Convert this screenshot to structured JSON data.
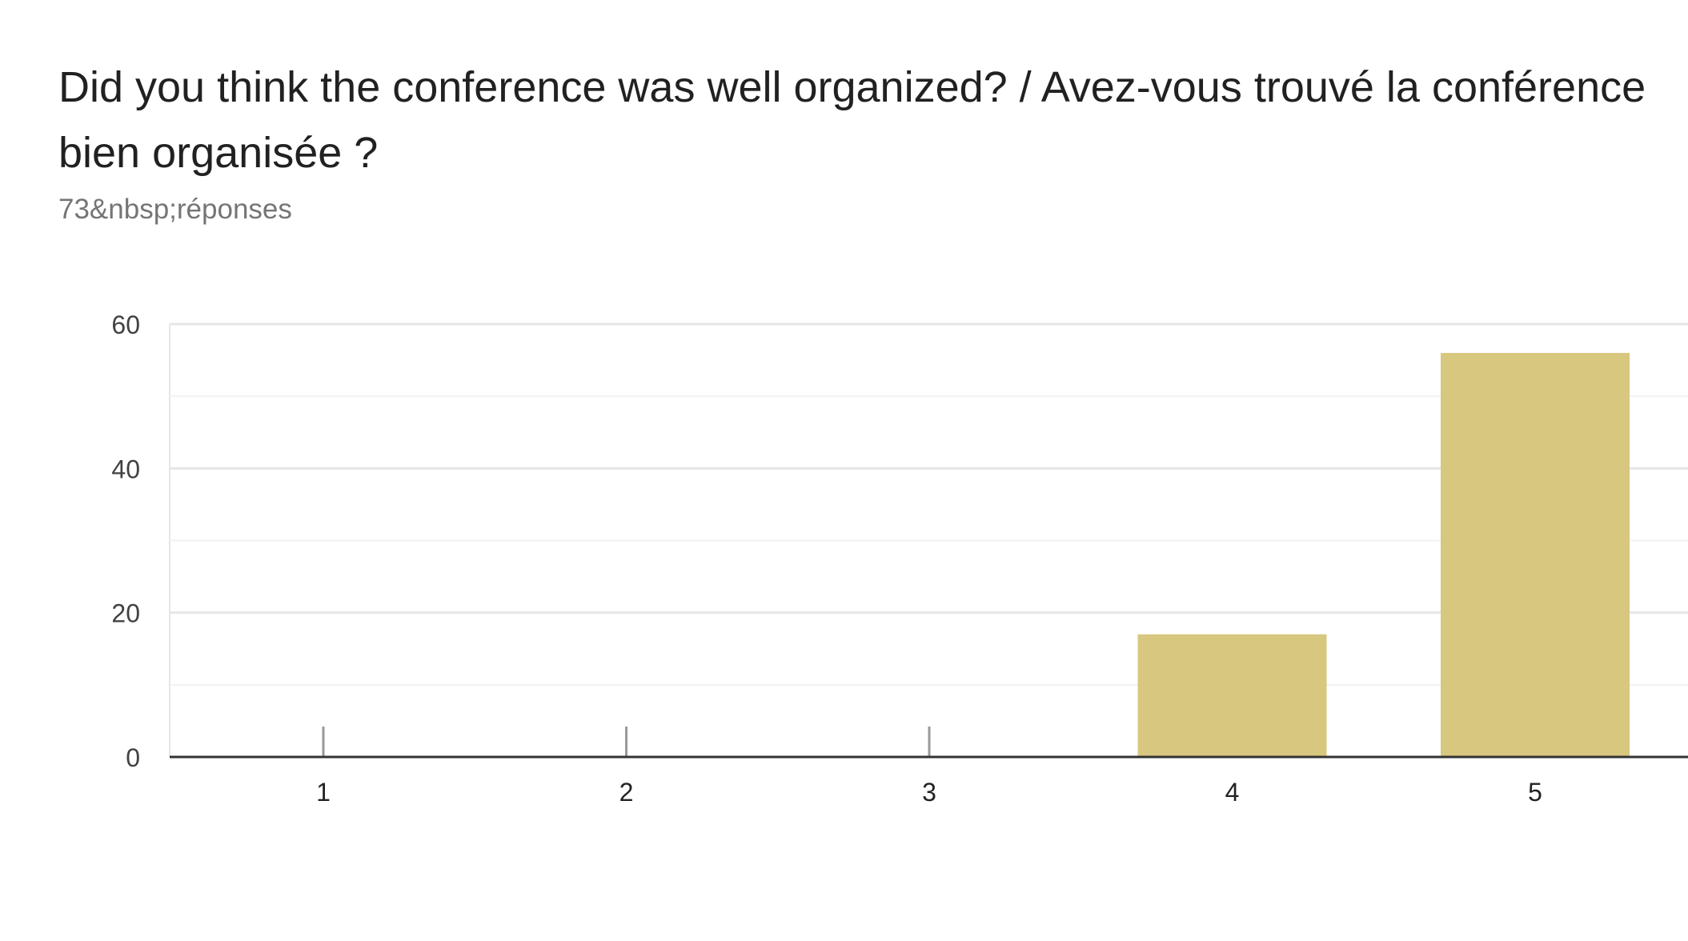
{
  "title": "Did you think the conference was well organized? / Avez-vous trouvé la conférence bien organisée ?",
  "subtitle": "73&nbsp;réponses",
  "colors": {
    "bar": "#d7c77f",
    "axis": "#333333",
    "grid": "#e6e6e6",
    "minor_grid": "#f2f2f2",
    "tick_mark": "#999999",
    "label": "#424242"
  },
  "chart_data": {
    "type": "bar",
    "title": "Did you think the conference was well organized? / Avez-vous trouvé la conférence bien organisée ?",
    "xlabel": "",
    "ylabel": "",
    "categories": [
      "1",
      "2",
      "3",
      "4",
      "5"
    ],
    "values": [
      0,
      0,
      0,
      17,
      56
    ],
    "ylim": [
      0,
      60
    ],
    "yticks": [
      0,
      20,
      40,
      60
    ],
    "grid": true,
    "legend": false
  }
}
